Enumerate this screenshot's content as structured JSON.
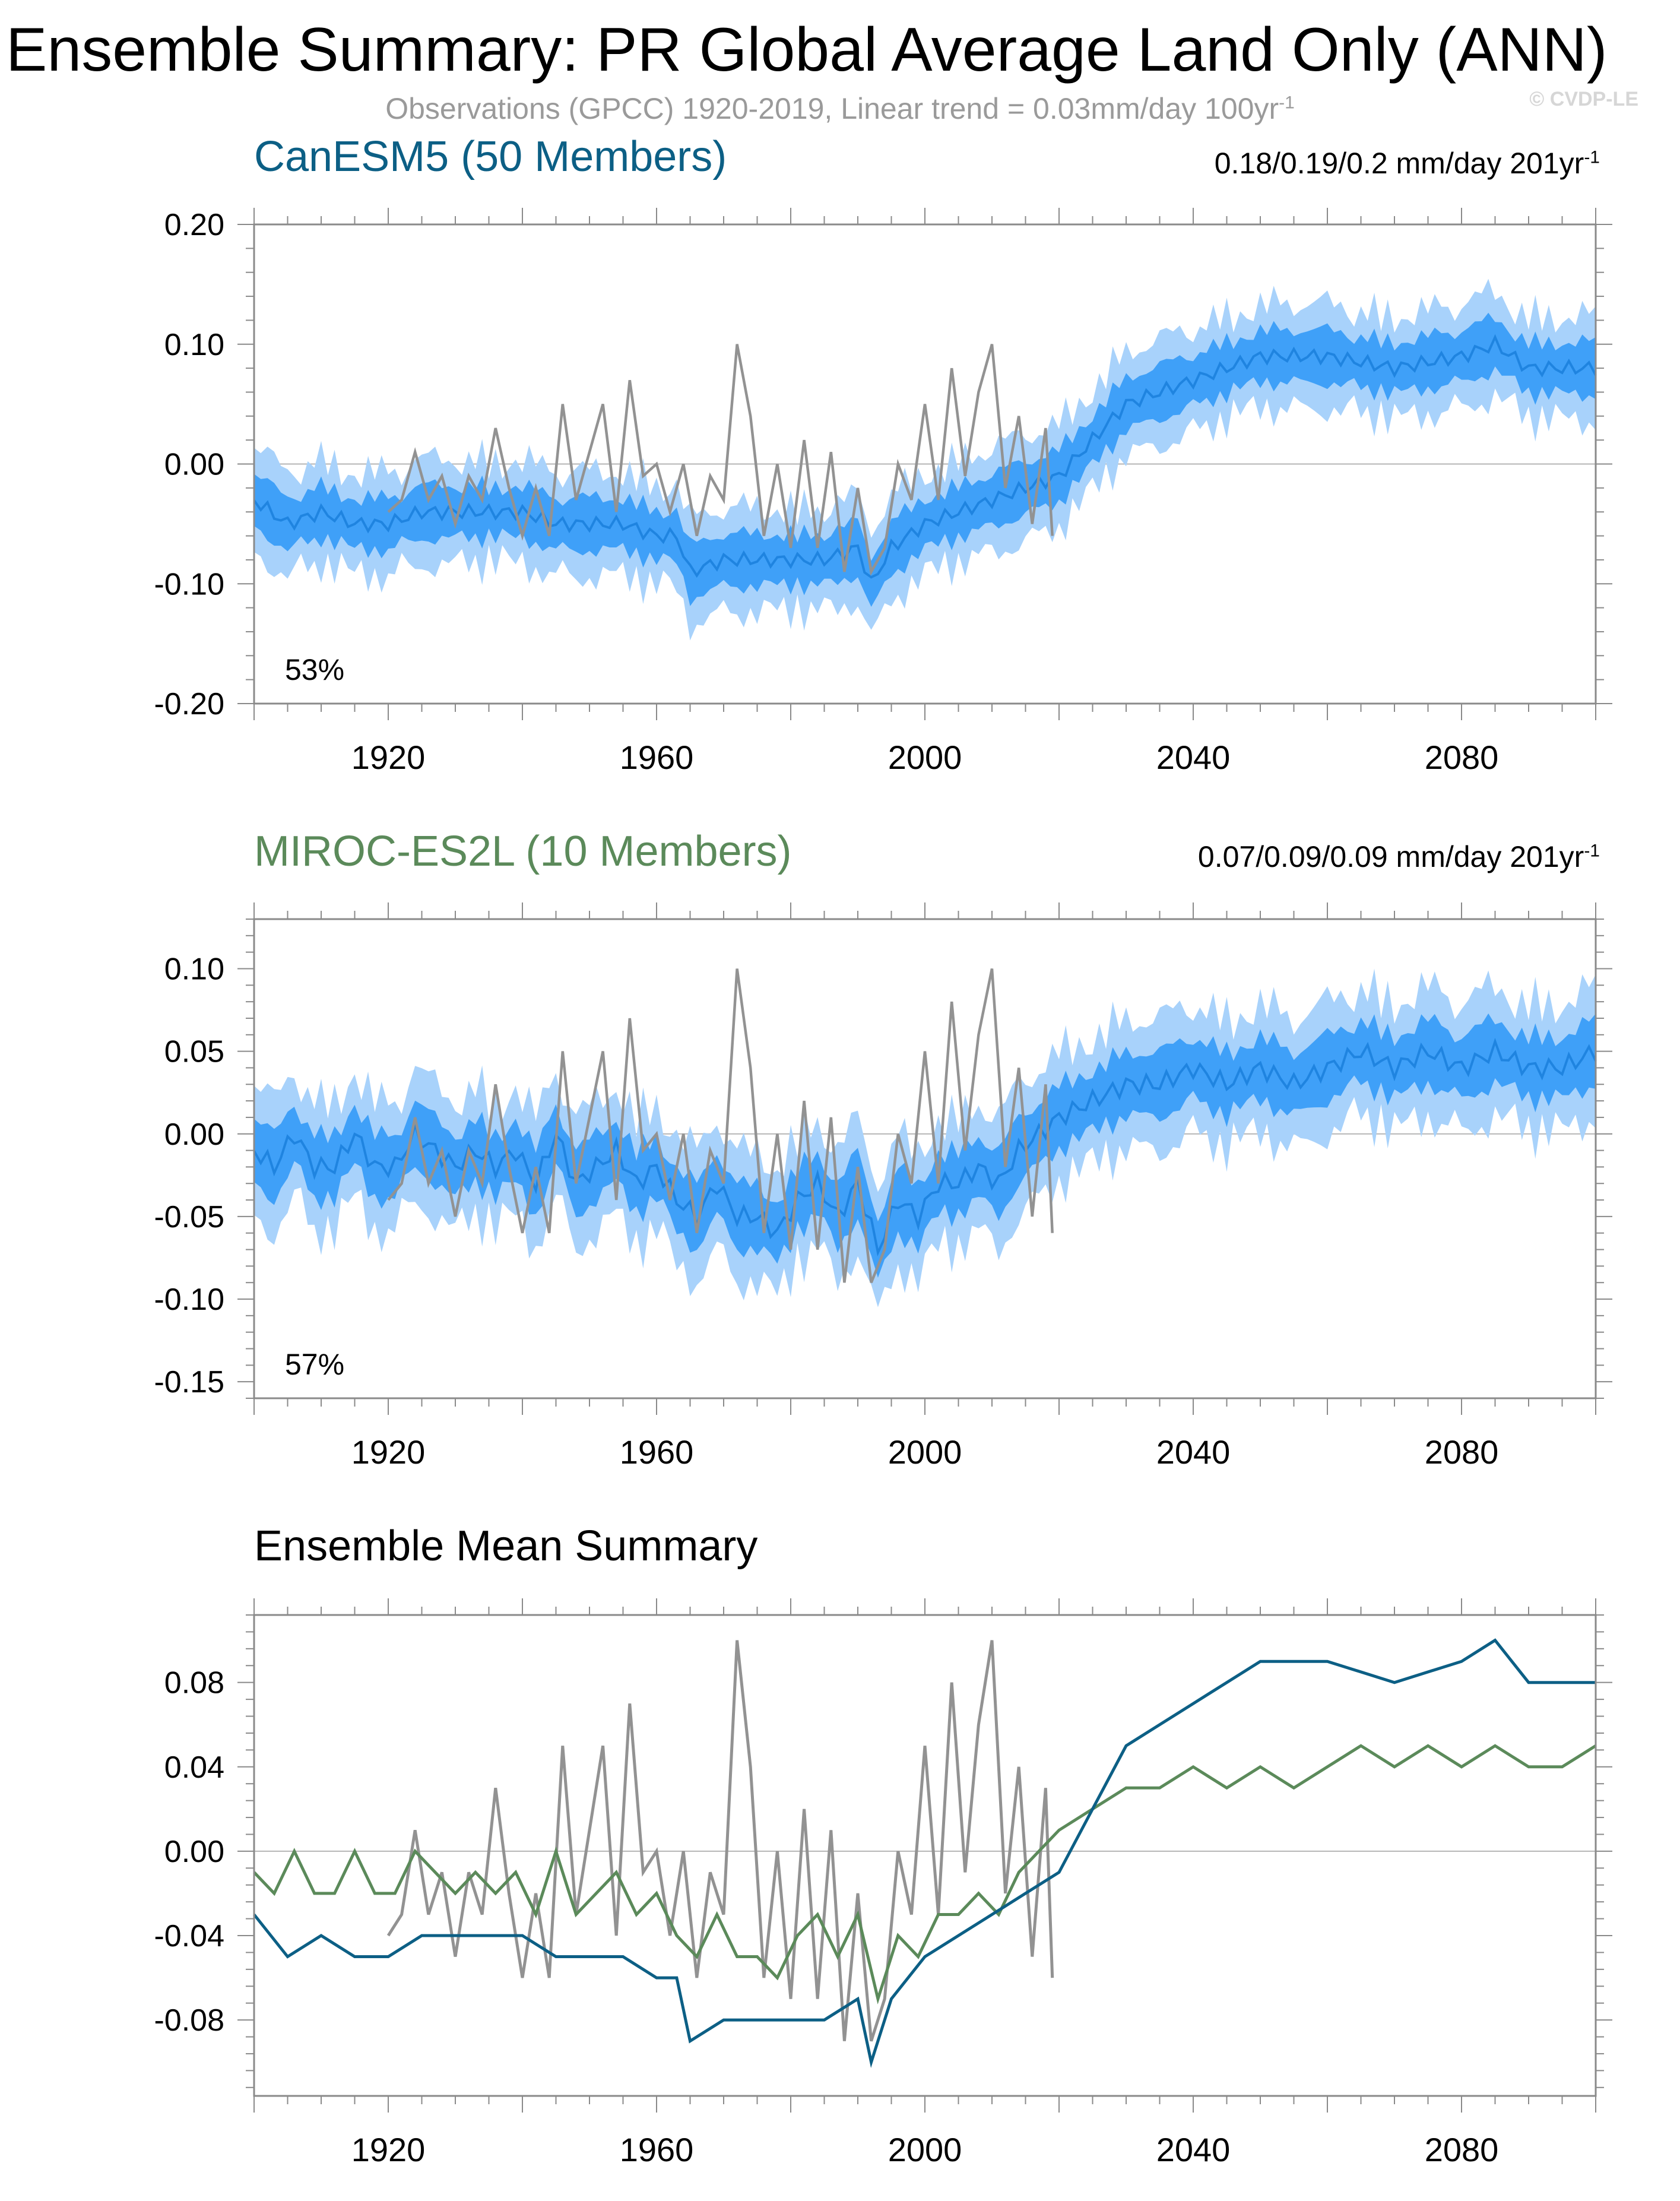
{
  "header": {
    "title": "Ensemble Summary: PR Global Average Land Only (ANN)",
    "obs_text": "Observations (GPCC) 1920-2019, Linear trend = 0.03mm/day 100yr",
    "obs_sup": "-1",
    "copyright": "© CVDP-LE"
  },
  "colors": {
    "canesm": "#0c5f85",
    "miroc": "#5b8a5a",
    "obs": "#929292",
    "band_outer": "#a8d2fb",
    "band_inner": "#3fa0f8",
    "ens_mean": "#1f84e0"
  },
  "panels": {
    "p1": {
      "title": "CanESM5 (50 Members)",
      "trend": "0.18/0.19/0.2 mm/day 201yr",
      "trend_sup": "-1",
      "pct": "53%"
    },
    "p2": {
      "title": "MIROC-ES2L (10 Members)",
      "trend": "0.07/0.09/0.09 mm/day 201yr",
      "trend_sup": "-1",
      "pct": "57%"
    },
    "p3": {
      "title": "Ensemble Mean Summary"
    }
  },
  "chart_data": [
    {
      "type": "line",
      "title": "CanESM5 (50 Members)",
      "x_range": [
        1900,
        2100
      ],
      "ylim": [
        -0.2,
        0.2
      ],
      "yticks": [
        "0.20",
        "0.10",
        "0.00",
        "-0.10",
        "-0.20"
      ],
      "xticks": [
        "1920",
        "1960",
        "2000",
        "2040",
        "2080"
      ],
      "xtick_values": [
        1920,
        1960,
        2000,
        2040,
        2080
      ],
      "ytick_values": [
        0.2,
        0.1,
        0.0,
        -0.1,
        -0.2
      ],
      "series": [
        {
          "name": "ensemble mean",
          "style": "mean",
          "x": [
            1900,
            1905,
            1910,
            1915,
            1920,
            1925,
            1930,
            1935,
            1940,
            1945,
            1950,
            1955,
            1960,
            1963,
            1965,
            1970,
            1975,
            1980,
            1985,
            1990,
            1992,
            1995,
            2000,
            2005,
            2010,
            2015,
            2020,
            2025,
            2030,
            2035,
            2040,
            2045,
            2050,
            2060,
            2070,
            2080,
            2085,
            2090,
            2095,
            2100
          ],
          "values": [
            -0.03,
            -0.05,
            -0.04,
            -0.05,
            -0.05,
            -0.04,
            -0.04,
            -0.04,
            -0.04,
            -0.05,
            -0.05,
            -0.05,
            -0.06,
            -0.06,
            -0.09,
            -0.08,
            -0.08,
            -0.08,
            -0.08,
            -0.07,
            -0.1,
            -0.07,
            -0.05,
            -0.04,
            -0.03,
            -0.02,
            -0.01,
            0.02,
            0.05,
            0.06,
            0.07,
            0.08,
            0.09,
            0.09,
            0.08,
            0.09,
            0.1,
            0.08,
            0.08,
            0.08
          ]
        },
        {
          "name": "Observations (GPCC)",
          "style": "obs",
          "x": [
            1920,
            1922,
            1924,
            1926,
            1928,
            1930,
            1932,
            1934,
            1936,
            1938,
            1940,
            1942,
            1944,
            1946,
            1948,
            1950,
            1952,
            1954,
            1956,
            1958,
            1960,
            1962,
            1964,
            1966,
            1968,
            1970,
            1972,
            1974,
            1976,
            1978,
            1980,
            1982,
            1984,
            1986,
            1988,
            1990,
            1992,
            1994,
            1996,
            1998,
            2000,
            2002,
            2004,
            2006,
            2008,
            2010,
            2012,
            2014,
            2016,
            2018,
            2019
          ],
          "values": [
            -0.04,
            -0.03,
            0.01,
            -0.03,
            -0.01,
            -0.05,
            -0.01,
            -0.03,
            0.03,
            -0.02,
            -0.06,
            -0.02,
            -0.06,
            0.05,
            -0.03,
            0.01,
            0.05,
            -0.04,
            0.07,
            -0.01,
            0.0,
            -0.04,
            0.0,
            -0.06,
            -0.01,
            -0.03,
            0.1,
            0.04,
            -0.06,
            0.0,
            -0.07,
            0.02,
            -0.07,
            0.01,
            -0.09,
            -0.02,
            -0.09,
            -0.07,
            0.0,
            -0.03,
            0.05,
            -0.03,
            0.08,
            -0.01,
            0.06,
            0.1,
            -0.02,
            0.04,
            -0.05,
            0.03,
            -0.06
          ]
        }
      ],
      "annotation": "53%"
    },
    {
      "type": "line",
      "title": "MIROC-ES2L (10 Members)",
      "x_range": [
        1900,
        2100
      ],
      "ylim": [
        -0.16,
        0.13
      ],
      "yticks": [
        "0.10",
        "0.05",
        "0.00",
        "-0.05",
        "-0.10",
        "-0.15"
      ],
      "xticks": [
        "1920",
        "1960",
        "2000",
        "2040",
        "2080"
      ],
      "xtick_values": [
        1920,
        1960,
        2000,
        2040,
        2080
      ],
      "ytick_values": [
        0.1,
        0.05,
        0.0,
        -0.05,
        -0.1,
        -0.15
      ],
      "series": [
        {
          "name": "ensemble mean",
          "style": "mean",
          "x": [
            1900,
            1903,
            1906,
            1909,
            1912,
            1915,
            1918,
            1921,
            1924,
            1927,
            1930,
            1933,
            1936,
            1939,
            1942,
            1945,
            1948,
            1951,
            1954,
            1957,
            1960,
            1963,
            1966,
            1969,
            1972,
            1975,
            1978,
            1981,
            1984,
            1987,
            1990,
            1993,
            1996,
            1999,
            2002,
            2005,
            2008,
            2011,
            2014,
            2017,
            2020,
            2025,
            2030,
            2035,
            2040,
            2045,
            2050,
            2055,
            2060,
            2065,
            2070,
            2075,
            2080,
            2085,
            2090,
            2095,
            2100
          ],
          "values": [
            -0.01,
            -0.02,
            0.0,
            -0.02,
            -0.02,
            0.0,
            -0.02,
            -0.02,
            0.0,
            -0.01,
            -0.02,
            -0.01,
            -0.02,
            -0.01,
            -0.03,
            0.0,
            -0.03,
            -0.02,
            -0.01,
            -0.03,
            -0.02,
            -0.04,
            -0.05,
            -0.03,
            -0.05,
            -0.05,
            -0.06,
            -0.04,
            -0.03,
            -0.05,
            -0.03,
            -0.07,
            -0.04,
            -0.05,
            -0.03,
            -0.03,
            -0.02,
            -0.03,
            -0.01,
            0.0,
            0.01,
            0.02,
            0.03,
            0.03,
            0.04,
            0.03,
            0.04,
            0.03,
            0.04,
            0.05,
            0.04,
            0.05,
            0.04,
            0.05,
            0.04,
            0.04,
            0.05
          ]
        },
        {
          "name": "Observations (GPCC)",
          "style": "obs",
          "x": [
            1920,
            1922,
            1924,
            1926,
            1928,
            1930,
            1932,
            1934,
            1936,
            1938,
            1940,
            1942,
            1944,
            1946,
            1948,
            1950,
            1952,
            1954,
            1956,
            1958,
            1960,
            1962,
            1964,
            1966,
            1968,
            1970,
            1972,
            1974,
            1976,
            1978,
            1980,
            1982,
            1984,
            1986,
            1988,
            1990,
            1992,
            1994,
            1996,
            1998,
            2000,
            2002,
            2004,
            2006,
            2008,
            2010,
            2012,
            2014,
            2016,
            2018,
            2019
          ],
          "values": [
            -0.04,
            -0.03,
            0.01,
            -0.03,
            -0.01,
            -0.05,
            -0.01,
            -0.03,
            0.03,
            -0.02,
            -0.06,
            -0.02,
            -0.06,
            0.05,
            -0.03,
            0.01,
            0.05,
            -0.04,
            0.07,
            -0.01,
            0.0,
            -0.04,
            0.0,
            -0.06,
            -0.01,
            -0.03,
            0.1,
            0.04,
            -0.06,
            0.0,
            -0.07,
            0.02,
            -0.07,
            0.01,
            -0.09,
            -0.02,
            -0.09,
            -0.07,
            0.0,
            -0.03,
            0.05,
            -0.03,
            0.08,
            -0.01,
            0.06,
            0.1,
            -0.02,
            0.04,
            -0.05,
            0.03,
            -0.06
          ]
        }
      ],
      "annotation": "57%"
    },
    {
      "type": "line",
      "title": "Ensemble Mean Summary",
      "x_range": [
        1900,
        2100
      ],
      "ylim": [
        -0.116,
        0.112
      ],
      "yticks": [
        "0.08",
        "0.04",
        "0.00",
        "-0.04",
        "-0.08"
      ],
      "xticks": [
        "1920",
        "1960",
        "2000",
        "2040",
        "2080"
      ],
      "xtick_values": [
        1920,
        1960,
        2000,
        2040,
        2080
      ],
      "ytick_values": [
        0.08,
        0.04,
        0.0,
        -0.04,
        -0.08
      ],
      "series": [
        {
          "name": "Observations (GPCC)",
          "color_key": "obs",
          "x": [
            1920,
            1922,
            1924,
            1926,
            1928,
            1930,
            1932,
            1934,
            1936,
            1938,
            1940,
            1942,
            1944,
            1946,
            1948,
            1950,
            1952,
            1954,
            1956,
            1958,
            1960,
            1962,
            1964,
            1966,
            1968,
            1970,
            1972,
            1974,
            1976,
            1978,
            1980,
            1982,
            1984,
            1986,
            1988,
            1990,
            1992,
            1994,
            1996,
            1998,
            2000,
            2002,
            2004,
            2006,
            2008,
            2010,
            2012,
            2014,
            2016,
            2018,
            2019
          ],
          "values": [
            -0.04,
            -0.03,
            0.01,
            -0.03,
            -0.01,
            -0.05,
            -0.01,
            -0.03,
            0.03,
            -0.02,
            -0.06,
            -0.02,
            -0.06,
            0.05,
            -0.03,
            0.01,
            0.05,
            -0.04,
            0.07,
            -0.01,
            0.0,
            -0.04,
            0.0,
            -0.06,
            -0.01,
            -0.03,
            0.1,
            0.04,
            -0.06,
            0.0,
            -0.07,
            0.02,
            -0.07,
            0.01,
            -0.09,
            -0.02,
            -0.09,
            -0.07,
            0.0,
            -0.03,
            0.05,
            -0.03,
            0.08,
            -0.01,
            0.06,
            0.1,
            -0.02,
            0.04,
            -0.05,
            0.03,
            -0.06
          ]
        },
        {
          "name": "MIROC-ES2L",
          "color_key": "miroc",
          "x": [
            1900,
            1903,
            1906,
            1909,
            1912,
            1915,
            1918,
            1921,
            1924,
            1927,
            1930,
            1933,
            1936,
            1939,
            1942,
            1945,
            1948,
            1951,
            1954,
            1957,
            1960,
            1963,
            1966,
            1969,
            1972,
            1975,
            1978,
            1981,
            1984,
            1987,
            1990,
            1993,
            1996,
            1999,
            2002,
            2005,
            2008,
            2011,
            2014,
            2017,
            2020,
            2025,
            2030,
            2035,
            2040,
            2045,
            2050,
            2055,
            2060,
            2065,
            2070,
            2075,
            2080,
            2085,
            2090,
            2095,
            2100
          ],
          "values": [
            -0.01,
            -0.02,
            0.0,
            -0.02,
            -0.02,
            0.0,
            -0.02,
            -0.02,
            0.0,
            -0.01,
            -0.02,
            -0.01,
            -0.02,
            -0.01,
            -0.03,
            0.0,
            -0.03,
            -0.02,
            -0.01,
            -0.03,
            -0.02,
            -0.04,
            -0.05,
            -0.03,
            -0.05,
            -0.05,
            -0.06,
            -0.04,
            -0.03,
            -0.05,
            -0.03,
            -0.07,
            -0.04,
            -0.05,
            -0.03,
            -0.03,
            -0.02,
            -0.03,
            -0.01,
            0.0,
            0.01,
            0.02,
            0.03,
            0.03,
            0.04,
            0.03,
            0.04,
            0.03,
            0.04,
            0.05,
            0.04,
            0.05,
            0.04,
            0.05,
            0.04,
            0.04,
            0.05
          ]
        },
        {
          "name": "CanESM5",
          "color_key": "canesm",
          "x": [
            1900,
            1905,
            1910,
            1915,
            1920,
            1925,
            1930,
            1935,
            1940,
            1945,
            1950,
            1955,
            1960,
            1963,
            1965,
            1970,
            1975,
            1980,
            1985,
            1990,
            1992,
            1995,
            2000,
            2005,
            2010,
            2015,
            2020,
            2025,
            2030,
            2035,
            2040,
            2045,
            2050,
            2060,
            2070,
            2080,
            2085,
            2090,
            2095,
            2100
          ],
          "values": [
            -0.03,
            -0.05,
            -0.04,
            -0.05,
            -0.05,
            -0.04,
            -0.04,
            -0.04,
            -0.04,
            -0.05,
            -0.05,
            -0.05,
            -0.06,
            -0.06,
            -0.09,
            -0.08,
            -0.08,
            -0.08,
            -0.08,
            -0.07,
            -0.1,
            -0.07,
            -0.05,
            -0.04,
            -0.03,
            -0.02,
            -0.01,
            0.02,
            0.05,
            0.06,
            0.07,
            0.08,
            0.09,
            0.09,
            0.08,
            0.09,
            0.1,
            0.08,
            0.08,
            0.08
          ]
        }
      ]
    }
  ]
}
